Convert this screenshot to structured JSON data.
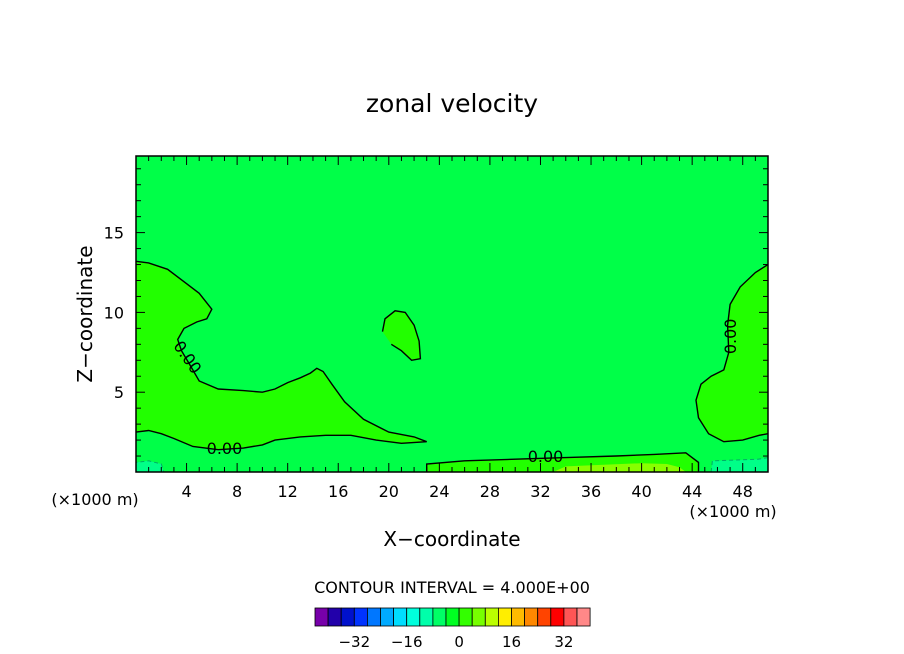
{
  "chart_data": {
    "type": "heatmap",
    "title": "zonal velocity",
    "xlabel": "X−coordinate",
    "ylabel": "Z−coordinate",
    "x_unit_left": "(×1000 m)",
    "x_unit_right": "(×1000 m)",
    "xlim": [
      0,
      50
    ],
    "ylim": [
      0,
      19.8
    ],
    "x_ticks": [
      4,
      8,
      12,
      16,
      20,
      24,
      28,
      32,
      36,
      40,
      44,
      48
    ],
    "y_ticks": [
      5,
      10,
      15
    ],
    "contour_interval_text": "CONTOUR INTERVAL = 4.000E+00",
    "contour_labels": [
      {
        "text": "0.00",
        "x": 4.1,
        "y": 7.2
      },
      {
        "text": "0.00",
        "x": 7.0,
        "y": 1.5
      },
      {
        "text": "0.00",
        "x": 32.4,
        "y": 1.0
      },
      {
        "text": "0.00",
        "x": 47.0,
        "y": 8.5
      }
    ],
    "background_color": "#00ff48",
    "regions": [
      {
        "name": "weak positive (left upper lobe)",
        "color": "#22ff00",
        "points": [
          [
            0,
            13.2
          ],
          [
            1,
            13.1
          ],
          [
            2.5,
            12.7
          ],
          [
            4,
            11.8
          ],
          [
            5,
            11.2
          ],
          [
            6,
            10.2
          ],
          [
            5.6,
            9.6
          ],
          [
            4.8,
            9.4
          ],
          [
            3.8,
            9.0
          ],
          [
            3.3,
            8.3
          ],
          [
            3.6,
            7.6
          ],
          [
            4.2,
            6.8
          ],
          [
            5,
            5.7
          ],
          [
            6.5,
            5.2
          ],
          [
            8.5,
            5.1
          ],
          [
            10,
            5.0
          ],
          [
            11,
            5.2
          ],
          [
            12,
            5.6
          ],
          [
            13,
            5.9
          ],
          [
            13.8,
            6.2
          ],
          [
            14.3,
            6.5
          ],
          [
            14.8,
            6.3
          ],
          [
            15.5,
            5.5
          ],
          [
            16.5,
            4.4
          ],
          [
            18,
            3.3
          ],
          [
            20,
            2.5
          ],
          [
            22,
            2.2
          ],
          [
            23,
            1.9
          ],
          [
            21,
            1.8
          ],
          [
            19,
            2.0
          ],
          [
            17,
            2.3
          ],
          [
            15,
            2.3
          ],
          [
            13,
            2.2
          ],
          [
            11,
            2.0
          ],
          [
            10,
            1.7
          ],
          [
            8.5,
            1.5
          ],
          [
            6.5,
            1.4
          ],
          [
            4.5,
            1.6
          ],
          [
            3,
            2.1
          ],
          [
            2,
            2.4
          ],
          [
            1,
            2.6
          ],
          [
            0,
            2.5
          ]
        ]
      },
      {
        "name": "weak positive (centre blob)",
        "color": "#22ff00",
        "points": [
          [
            19.5,
            8.8
          ],
          [
            19.7,
            9.6
          ],
          [
            20.5,
            10.1
          ],
          [
            21.3,
            10.0
          ],
          [
            22,
            9.2
          ],
          [
            22.4,
            8.2
          ],
          [
            22.5,
            7.1
          ],
          [
            21.8,
            7.0
          ],
          [
            21,
            7.6
          ],
          [
            20.2,
            8.0
          ]
        ]
      },
      {
        "name": "weak positive (right lobe)",
        "color": "#22ff00",
        "points": [
          [
            50,
            13.0
          ],
          [
            49,
            12.5
          ],
          [
            47.8,
            11.6
          ],
          [
            47,
            10.5
          ],
          [
            46.8,
            9.2
          ],
          [
            46.9,
            7.5
          ],
          [
            46.5,
            6.4
          ],
          [
            45.5,
            6.0
          ],
          [
            44.7,
            5.5
          ],
          [
            44.3,
            4.5
          ],
          [
            44.5,
            3.4
          ],
          [
            45.3,
            2.4
          ],
          [
            46.5,
            1.9
          ],
          [
            48,
            2.0
          ],
          [
            49.3,
            2.3
          ],
          [
            50,
            2.4
          ]
        ]
      },
      {
        "name": "bottom strip",
        "color": "#22ff00",
        "points": [
          [
            23,
            0
          ],
          [
            23,
            0.5
          ],
          [
            26,
            0.7
          ],
          [
            30,
            0.8
          ],
          [
            34,
            0.9
          ],
          [
            38,
            1.0
          ],
          [
            41,
            1.1
          ],
          [
            43.5,
            1.2
          ],
          [
            44.5,
            0.6
          ],
          [
            44.5,
            0
          ]
        ]
      },
      {
        "name": "bottom strip stronger",
        "color": "#88ff00",
        "points": [
          [
            33,
            0
          ],
          [
            34,
            0.35
          ],
          [
            37,
            0.45
          ],
          [
            40,
            0.55
          ],
          [
            42,
            0.5
          ],
          [
            43,
            0.3
          ],
          [
            43.5,
            0
          ]
        ]
      },
      {
        "name": "negative corner (left)",
        "color": "#00ff88",
        "points": [
          [
            0,
            0
          ],
          [
            0,
            0.6
          ],
          [
            1,
            0.7
          ],
          [
            2,
            0.5
          ],
          [
            2.2,
            0
          ]
        ]
      },
      {
        "name": "negative corner (right)",
        "color": "#00ff88",
        "points": [
          [
            45.5,
            0
          ],
          [
            45.6,
            0.7
          ],
          [
            47.5,
            0.75
          ],
          [
            49.2,
            0.8
          ],
          [
            50,
            0.9
          ],
          [
            50,
            0
          ]
        ]
      }
    ],
    "colorbar": {
      "colors": [
        "#7700aa",
        "#2200aa",
        "#0011cc",
        "#0033ff",
        "#0077ff",
        "#00aaff",
        "#00ddff",
        "#00ffdd",
        "#00ffaa",
        "#00ff66",
        "#00ff22",
        "#33ff00",
        "#77ff00",
        "#bbff00",
        "#ffee00",
        "#ffbb00",
        "#ff8800",
        "#ff4400",
        "#ff0000",
        "#ff5555",
        "#ff8888"
      ],
      "labels": [
        {
          "text": "−32",
          "index": 2
        },
        {
          "text": "−16",
          "index": 6
        },
        {
          "text": "0",
          "index": 10
        },
        {
          "text": "16",
          "index": 14
        },
        {
          "text": "32",
          "index": 18
        }
      ]
    }
  }
}
